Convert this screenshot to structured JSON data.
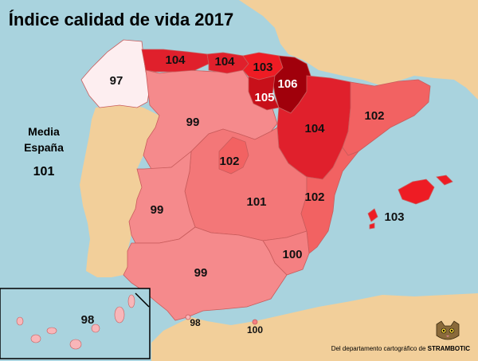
{
  "title": "Índice calidad de vida 2017",
  "national_average": {
    "line1": "Media",
    "line2": "España",
    "value": "101"
  },
  "regions": [
    {
      "name": "Galicia",
      "value": "97",
      "color": "#fdeef0"
    },
    {
      "name": "Asturias",
      "value": "104",
      "color": "#e0202c"
    },
    {
      "name": "Cantabria",
      "value": "104",
      "color": "#e0202c"
    },
    {
      "name": "País Vasco",
      "value": "103",
      "color": "#ee1c24"
    },
    {
      "name": "Navarra",
      "value": "106",
      "color": "#a0000b"
    },
    {
      "name": "La Rioja",
      "value": "105",
      "color": "#c8101a"
    },
    {
      "name": "Aragón",
      "value": "104",
      "color": "#e0202c"
    },
    {
      "name": "Cataluña",
      "value": "102",
      "color": "#f26262"
    },
    {
      "name": "Castilla y León",
      "value": "99",
      "color": "#f58a8c"
    },
    {
      "name": "Madrid",
      "value": "102",
      "color": "#f26262"
    },
    {
      "name": "Castilla-La Mancha",
      "value": "101",
      "color": "#f37778"
    },
    {
      "name": "Comunidad Valenciana",
      "value": "102",
      "color": "#f26262"
    },
    {
      "name": "Extremadura",
      "value": "99",
      "color": "#f58a8c"
    },
    {
      "name": "Murcia",
      "value": "100",
      "color": "#f48082"
    },
    {
      "name": "Andalucía",
      "value": "99",
      "color": "#f58a8c"
    },
    {
      "name": "Islas Baleares",
      "value": "103",
      "color": "#ee1c24"
    },
    {
      "name": "Canarias",
      "value": "98",
      "color": "#f8b6b9"
    },
    {
      "name": "Ceuta",
      "value": "98",
      "color": "#f8b6b9"
    },
    {
      "name": "Melilla",
      "value": "100",
      "color": "#f48082"
    }
  ],
  "colors": {
    "sea": "#a9d3de",
    "land": "#f2cf9a",
    "outline": "#1a1a1a"
  },
  "credit": {
    "text": "Del departamento cartográfico de ",
    "brand": "STRAMBOTIC"
  }
}
